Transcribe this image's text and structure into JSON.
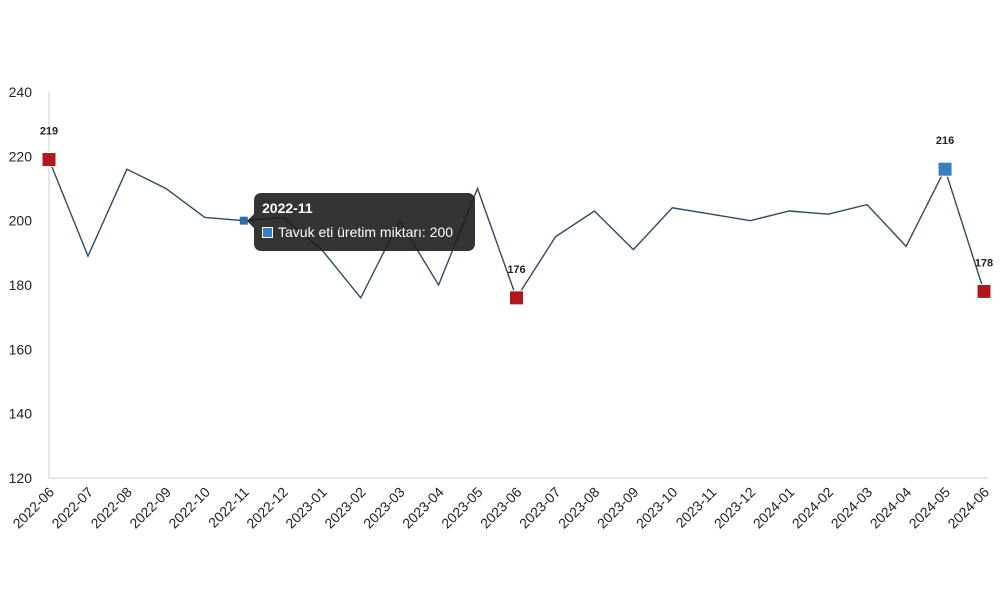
{
  "chart_data": {
    "type": "line",
    "x": [
      "2022-06",
      "2022-07",
      "2022-08",
      "2022-09",
      "2022-10",
      "2022-11",
      "2022-12",
      "2023-01",
      "2023-02",
      "2023-03",
      "2023-04",
      "2023-05",
      "2023-06",
      "2023-07",
      "2023-08",
      "2023-09",
      "2023-10",
      "2023-11",
      "2023-12",
      "2024-01",
      "2024-02",
      "2024-03",
      "2024-04",
      "2024-05",
      "2024-06"
    ],
    "series": [
      {
        "name": "Tavuk eti üretim miktarı",
        "values": [
          219,
          189,
          216,
          210,
          201,
          200,
          201,
          191,
          176,
          200,
          180,
          210,
          176,
          195,
          203,
          191,
          204,
          202,
          200,
          203,
          202,
          205,
          192,
          216,
          178
        ],
        "color": "#2e4a62"
      }
    ],
    "ylim": [
      120,
      240
    ],
    "yticks": [
      120,
      140,
      160,
      180,
      200,
      220,
      240
    ],
    "highlights": [
      {
        "x": "2022-06",
        "value": 219,
        "label": "219",
        "color": "#b0171e"
      },
      {
        "x": "2023-06",
        "value": 176,
        "label": "176",
        "color": "#b0171e"
      },
      {
        "x": "2024-05",
        "value": 216,
        "label": "216",
        "color": "#3a7fc0"
      },
      {
        "x": "2024-06",
        "value": 178,
        "label": "178",
        "color": "#b0171e"
      }
    ],
    "hover_point": {
      "x": "2022-11",
      "value": 200,
      "color": "#2f6fa8"
    },
    "grid": false
  },
  "tooltip": {
    "title": "2022-11",
    "text": "Tavuk eti üretim miktarı: 200",
    "swatch_color": "#3a7fc0"
  }
}
